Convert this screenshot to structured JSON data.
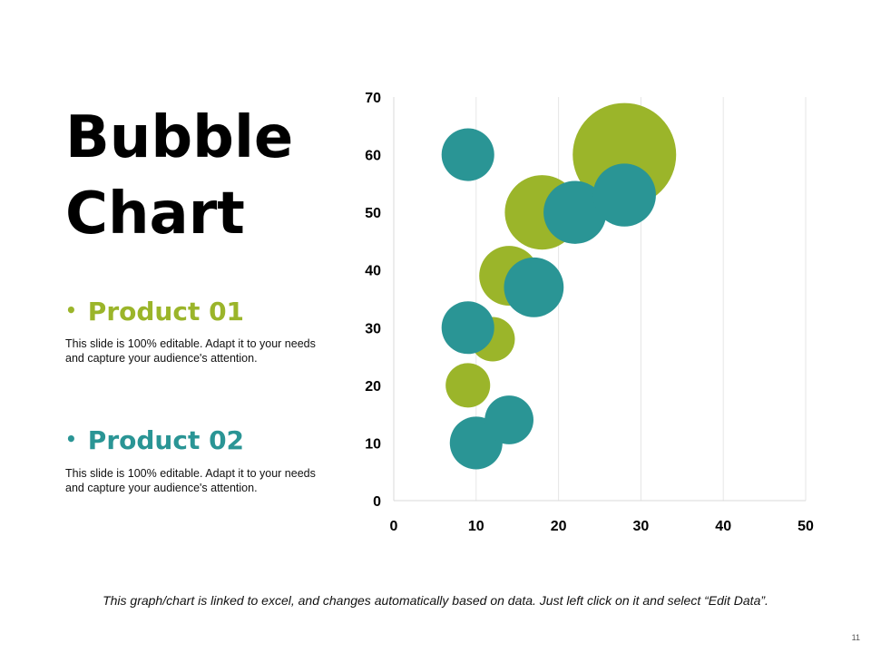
{
  "slide": {
    "title_line1": "Bubble",
    "title_line2": "Chart",
    "footer": "This graph/chart is linked to excel, and changes automatically based on data. Just left click on it and select “Edit Data”.",
    "page_number": "11"
  },
  "products": [
    {
      "bullet": "•",
      "name": "Product 01",
      "color": "#9BB52A",
      "description": "This slide is 100% editable. Adapt it to your needs and capture your audience's attention."
    },
    {
      "bullet": "•",
      "name": "Product 02",
      "color": "#2A9595",
      "description": "This slide is 100% editable. Adapt it to your needs and capture your audience's attention."
    }
  ],
  "chart_data": {
    "type": "scatter",
    "subtype": "bubble",
    "title": "",
    "xlabel": "",
    "ylabel": "",
    "xlim": [
      0,
      50
    ],
    "ylim": [
      0,
      70
    ],
    "xticks": [
      0,
      10,
      20,
      30,
      40,
      50
    ],
    "yticks": [
      0,
      10,
      20,
      30,
      40,
      50,
      60,
      70
    ],
    "grid": "vertical",
    "series": [
      {
        "name": "Product 01",
        "color": "#9BB52A",
        "points": [
          {
            "x": 9,
            "y": 20,
            "size": 5
          },
          {
            "x": 12,
            "y": 28,
            "size": 5
          },
          {
            "x": 14,
            "y": 39,
            "size": 9
          },
          {
            "x": 18,
            "y": 50,
            "size": 14
          },
          {
            "x": 28,
            "y": 60,
            "size": 27
          }
        ]
      },
      {
        "name": "Product 02",
        "color": "#2A9595",
        "points": [
          {
            "x": 10,
            "y": 10,
            "size": 7
          },
          {
            "x": 14,
            "y": 14,
            "size": 6
          },
          {
            "x": 9,
            "y": 30,
            "size": 7
          },
          {
            "x": 17,
            "y": 37,
            "size": 9
          },
          {
            "x": 9,
            "y": 60,
            "size": 7
          },
          {
            "x": 22,
            "y": 50,
            "size": 10
          },
          {
            "x": 28,
            "y": 53,
            "size": 10
          }
        ]
      }
    ]
  }
}
